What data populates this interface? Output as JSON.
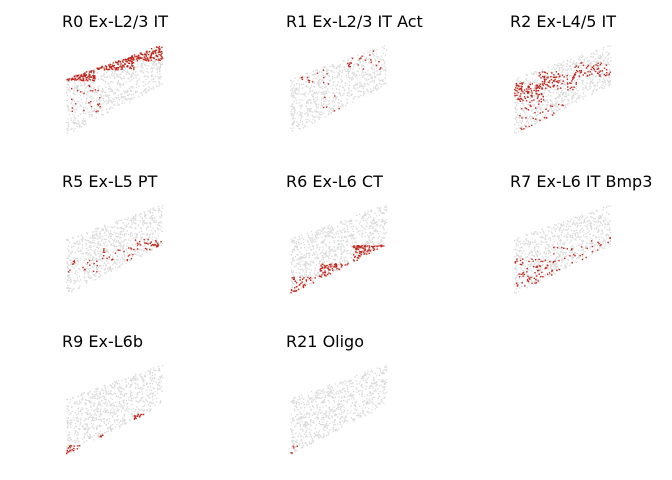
{
  "chart_data": {
    "type": "scatter",
    "description_note": "",
    "colors": {
      "background": "#d9d9d9",
      "highlight": "#c0281e"
    },
    "panels": [
      {
        "title": "R0 Ex-L2/3 IT",
        "highlight_clusters": [
          {
            "x": [
              0.0,
              0.3
            ],
            "y": [
              0.6,
              0.72
            ],
            "density": 90
          },
          {
            "x": [
              0.28,
              0.7
            ],
            "y": [
              0.72,
              0.86
            ],
            "density": 110
          },
          {
            "x": [
              0.62,
              1.0
            ],
            "y": [
              0.82,
              0.98
            ],
            "density": 120
          },
          {
            "x": [
              0.05,
              0.35
            ],
            "y": [
              0.25,
              0.55
            ],
            "density": 25
          }
        ]
      },
      {
        "title": "R1 Ex-L2/3 IT Act",
        "highlight_clusters": [
          {
            "x": [
              0.1,
              0.45
            ],
            "y": [
              0.55,
              0.72
            ],
            "density": 14
          },
          {
            "x": [
              0.55,
              0.95
            ],
            "y": [
              0.72,
              0.95
            ],
            "density": 22
          },
          {
            "x": [
              0.25,
              0.6
            ],
            "y": [
              0.25,
              0.45
            ],
            "density": 6
          }
        ]
      },
      {
        "title": "R2 Ex-L4/5 IT",
        "highlight_clusters": [
          {
            "x": [
              0.0,
              0.3
            ],
            "y": [
              0.35,
              0.58
            ],
            "density": 110
          },
          {
            "x": [
              0.25,
              0.65
            ],
            "y": [
              0.5,
              0.7
            ],
            "density": 90
          },
          {
            "x": [
              0.6,
              1.0
            ],
            "y": [
              0.65,
              0.8
            ],
            "density": 60
          },
          {
            "x": [
              0.05,
              0.6
            ],
            "y": [
              0.05,
              0.35
            ],
            "density": 35
          }
        ]
      },
      {
        "title": "R5 Ex-L5 PT",
        "highlight_clusters": [
          {
            "x": [
              0.0,
              0.35
            ],
            "y": [
              0.25,
              0.38
            ],
            "density": 18
          },
          {
            "x": [
              0.35,
              0.7
            ],
            "y": [
              0.38,
              0.52
            ],
            "density": 24
          },
          {
            "x": [
              0.7,
              1.0
            ],
            "y": [
              0.5,
              0.62
            ],
            "density": 35
          }
        ]
      },
      {
        "title": "R6 Ex-L6 CT",
        "highlight_clusters": [
          {
            "x": [
              0.0,
              0.3
            ],
            "y": [
              0.02,
              0.2
            ],
            "density": 40
          },
          {
            "x": [
              0.3,
              0.65
            ],
            "y": [
              0.15,
              0.35
            ],
            "density": 70
          },
          {
            "x": [
              0.65,
              1.0
            ],
            "y": [
              0.3,
              0.55
            ],
            "density": 90
          }
        ]
      },
      {
        "title": "R7 Ex-L6 IT Bmp3",
        "highlight_clusters": [
          {
            "x": [
              0.0,
              0.4
            ],
            "y": [
              0.05,
              0.4
            ],
            "density": 70
          },
          {
            "x": [
              0.4,
              0.75
            ],
            "y": [
              0.25,
              0.55
            ],
            "density": 25
          },
          {
            "x": [
              0.75,
              1.0
            ],
            "y": [
              0.45,
              0.65
            ],
            "density": 12
          }
        ]
      },
      {
        "title": "R9 Ex-L6b",
        "highlight_clusters": [
          {
            "x": [
              0.0,
              0.35
            ],
            "y": [
              0.0,
              0.1
            ],
            "density": 18
          },
          {
            "x": [
              0.35,
              0.7
            ],
            "y": [
              0.08,
              0.22
            ],
            "density": 16
          },
          {
            "x": [
              0.7,
              1.0
            ],
            "y": [
              0.18,
              0.45
            ],
            "density": 16
          }
        ]
      },
      {
        "title": "R21 Oligo",
        "highlight_clusters": [
          {
            "x": [
              0.0,
              0.35
            ],
            "y": [
              0.0,
              0.1
            ],
            "density": 5
          },
          {
            "x": [
              0.35,
              0.7
            ],
            "y": [
              0.05,
              0.2
            ],
            "density": 6
          },
          {
            "x": [
              0.7,
              1.0
            ],
            "y": [
              0.15,
              0.4
            ],
            "density": 8
          }
        ]
      }
    ]
  }
}
